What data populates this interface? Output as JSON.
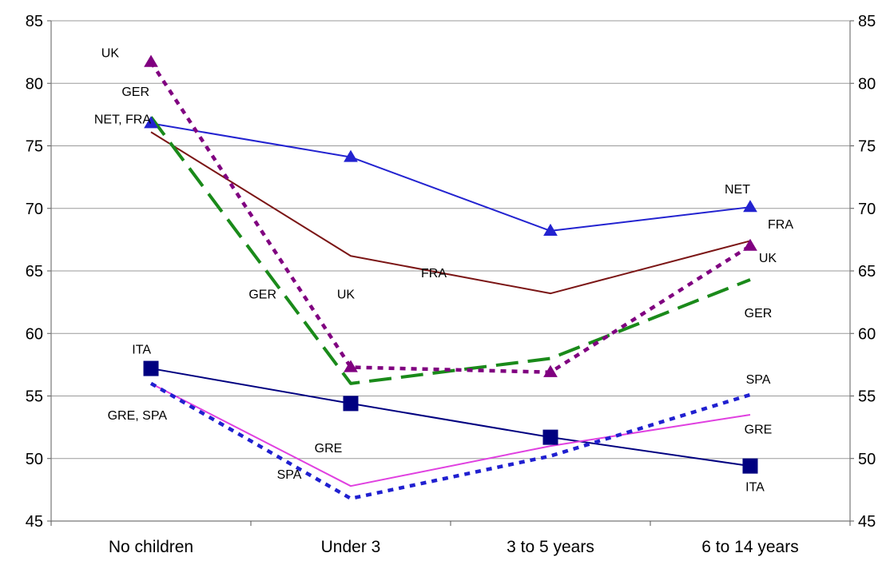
{
  "chart_data": {
    "type": "line",
    "title": "",
    "xlabel": "",
    "ylabel": "",
    "categories": [
      "No children",
      "Under 3",
      "3 to 5 years",
      "6 to 14 years"
    ],
    "ylim": [
      45,
      85
    ],
    "yticks": [
      45,
      50,
      55,
      60,
      65,
      70,
      75,
      80,
      85
    ],
    "ytick_labels": [
      "45",
      "50",
      "55",
      "60",
      "65",
      "70",
      "75",
      "80",
      "85"
    ],
    "grid": true,
    "legend": "none",
    "series": [
      {
        "name": "NET",
        "values": [
          76.8,
          74.1,
          68.2,
          70.1
        ],
        "color": "#2323d0",
        "style": "solid",
        "marker": "triangle"
      },
      {
        "name": "FRA",
        "values": [
          76.1,
          66.2,
          63.2,
          67.4
        ],
        "color": "#7b1515",
        "style": "solid",
        "marker": "none"
      },
      {
        "name": "GER",
        "values": [
          77.3,
          56.0,
          58.0,
          64.3
        ],
        "color": "#1a8a1a",
        "style": "longdash",
        "marker": "none"
      },
      {
        "name": "UK",
        "values": [
          81.7,
          57.3,
          56.9,
          67.0
        ],
        "color": "#800080",
        "style": "dotted",
        "marker": "triangle"
      },
      {
        "name": "ITA",
        "values": [
          57.2,
          54.4,
          51.7,
          49.4
        ],
        "color": "#000080",
        "style": "solid",
        "marker": "square"
      },
      {
        "name": "GRE",
        "values": [
          56.0,
          47.8,
          51.0,
          53.5
        ],
        "color": "#e040e0",
        "style": "solid",
        "marker": "none"
      },
      {
        "name": "SPA",
        "values": [
          56.0,
          46.8,
          50.2,
          55.1
        ],
        "color": "#2020d0",
        "style": "dotted",
        "marker": "none"
      }
    ],
    "annotations": [
      {
        "text": "UK",
        "cat": 0,
        "y": 82.1,
        "anchor": "end",
        "dx": -40
      },
      {
        "text": "GER",
        "cat": 0,
        "y": 79.0,
        "anchor": "end",
        "dx": -2
      },
      {
        "text": "NET, FRA",
        "cat": 0,
        "y": 76.8,
        "anchor": "end",
        "dx": 0
      },
      {
        "text": "ITA",
        "cat": 0,
        "y": 58.4,
        "anchor": "end",
        "dx": 0
      },
      {
        "text": "GRE, SPA",
        "cat": 0,
        "y": 53.1,
        "anchor": "end",
        "dx": 20
      },
      {
        "text": "GER",
        "cat": 1,
        "y": 62.8,
        "anchor": "end",
        "dx": -93
      },
      {
        "text": "UK",
        "cat": 1,
        "y": 62.8,
        "anchor": "middle",
        "dx": -6
      },
      {
        "text": "FRA",
        "cat": 1,
        "y": 64.5,
        "anchor": "middle",
        "dx": 104
      },
      {
        "text": "GRE",
        "cat": 1,
        "y": 50.5,
        "anchor": "middle",
        "dx": -28
      },
      {
        "text": "SPA",
        "cat": 1,
        "y": 48.4,
        "anchor": "middle",
        "dx": -77
      },
      {
        "text": "NET",
        "cat": 3,
        "y": 71.2,
        "anchor": "middle",
        "dx": -16
      },
      {
        "text": "FRA",
        "cat": 3,
        "y": 68.4,
        "anchor": "middle",
        "dx": 38
      },
      {
        "text": "UK",
        "cat": 3,
        "y": 65.7,
        "anchor": "middle",
        "dx": 22
      },
      {
        "text": "GER",
        "cat": 3,
        "y": 61.3,
        "anchor": "middle",
        "dx": 10
      },
      {
        "text": "SPA",
        "cat": 3,
        "y": 56.0,
        "anchor": "middle",
        "dx": 10
      },
      {
        "text": "GRE",
        "cat": 3,
        "y": 52.0,
        "anchor": "middle",
        "dx": 10
      },
      {
        "text": "ITA",
        "cat": 3,
        "y": 47.4,
        "anchor": "middle",
        "dx": 6
      }
    ]
  }
}
